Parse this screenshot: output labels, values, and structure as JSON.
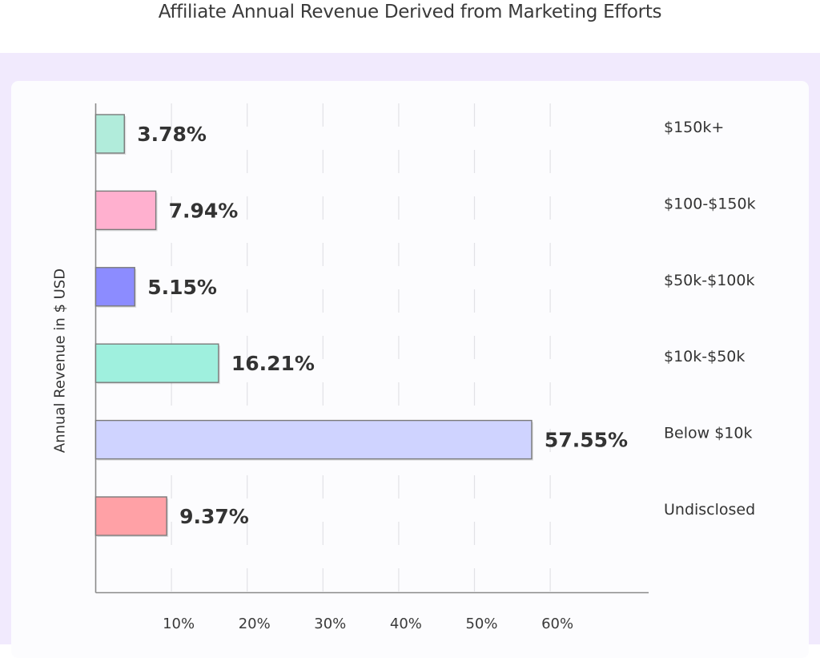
{
  "chart_data": {
    "type": "bar",
    "orientation": "horizontal",
    "title": "Affiliate Annual Revenue Derived from Marketing Efforts",
    "xlabel": "",
    "ylabel": "Annual Revenue in $ USD",
    "categories": [
      "$150k+",
      "$100-$150k",
      "$50k-$100k",
      "$10k-$50k",
      "Below $10k",
      "Undisclosed"
    ],
    "values": [
      3.78,
      7.94,
      5.15,
      16.21,
      57.55,
      9.37
    ],
    "value_labels": [
      "3.78%",
      "7.94%",
      "5.15%",
      "16.21%",
      "57.55%",
      "9.37%"
    ],
    "colors": [
      "#b1ecdb",
      "#ffb0cf",
      "#8c8cff",
      "#9ff0de",
      "#cfd3ff",
      "#ffa1a6"
    ],
    "xticks": [
      10,
      20,
      30,
      40,
      50,
      60
    ],
    "xtick_labels": [
      "10%",
      "20%",
      "30%",
      "40%",
      "50%",
      "60%"
    ],
    "xlim": [
      0,
      73
    ],
    "grid": true,
    "legend": "none",
    "category_label_position": "right"
  }
}
